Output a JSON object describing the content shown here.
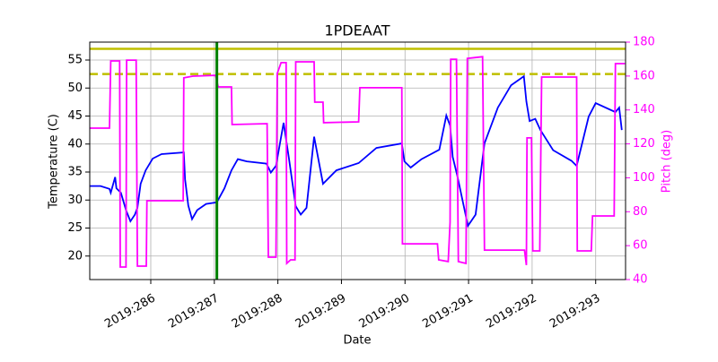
{
  "chart_data": {
    "type": "line",
    "title": "1PDEAAT",
    "x_label": "Date",
    "y_label": "Temperature (C)",
    "y2_label": "Pitch (deg)",
    "xlim": [
      285.04,
      293.47
    ],
    "xticks": [
      {
        "value": 286,
        "label": "2019:286"
      },
      {
        "value": 287,
        "label": "2019:287"
      },
      {
        "value": 288,
        "label": "2019:288"
      },
      {
        "value": 289,
        "label": "2019:289"
      },
      {
        "value": 290,
        "label": "2019:290"
      },
      {
        "value": 291,
        "label": "2019:291"
      },
      {
        "value": 292,
        "label": "2019:292"
      },
      {
        "value": 293,
        "label": "2019:293"
      }
    ],
    "ylim": [
      15.8,
      58.2
    ],
    "yticks": [
      20,
      25,
      30,
      35,
      40,
      45,
      50,
      55
    ],
    "y2lim": [
      40,
      180
    ],
    "y2ticks": [
      40,
      60,
      80,
      100,
      120,
      140,
      160,
      180
    ],
    "y2_color": "#ff00ff",
    "grid": true,
    "hlines": [
      {
        "value": 57,
        "color": "#bfbf00",
        "style": "solid"
      },
      {
        "value": 52.5,
        "color": "#bfbf00",
        "style": "dashed"
      }
    ],
    "vline": {
      "value": 287.04,
      "color": "#008000"
    },
    "series": [
      {
        "color": "#0000ff",
        "axis": "y",
        "x": [
          285.04,
          285.21,
          285.35,
          285.37,
          285.44,
          285.46,
          285.53,
          285.61,
          285.68,
          285.75,
          285.79,
          285.84,
          285.92,
          286.03,
          286.17,
          286.52,
          286.54,
          286.59,
          286.65,
          286.73,
          286.87,
          287.04,
          287.16,
          287.27,
          287.37,
          287.51,
          287.82,
          287.89,
          287.97,
          288.09,
          288.17,
          288.28,
          288.36,
          288.45,
          288.57,
          288.71,
          288.92,
          289.27,
          289.55,
          289.95,
          289.99,
          290.09,
          290.26,
          290.54,
          290.65,
          290.71,
          290.75,
          290.82,
          290.99,
          291.11,
          291.25,
          291.46,
          291.67,
          291.87,
          291.91,
          291.96,
          292.05,
          292.13,
          292.33,
          292.62,
          292.7,
          292.89,
          293.0,
          293.31,
          293.37,
          293.41
        ],
        "values": [
          32.5,
          32.5,
          32.0,
          31.3,
          34.1,
          32.1,
          31.3,
          28.2,
          26.2,
          27.4,
          28.6,
          32.9,
          35.3,
          37.4,
          38.2,
          38.5,
          33.7,
          29.0,
          26.6,
          28.2,
          29.3,
          29.6,
          32.1,
          35.3,
          37.3,
          36.9,
          36.5,
          34.9,
          36.1,
          43.8,
          37.7,
          28.9,
          27.4,
          28.6,
          41.3,
          32.9,
          35.3,
          36.6,
          39.3,
          40.1,
          36.9,
          35.8,
          37.3,
          39.0,
          45.1,
          43.3,
          37.7,
          34.5,
          25.4,
          27.4,
          40.1,
          46.5,
          50.5,
          52.1,
          47.6,
          44.1,
          44.5,
          42.5,
          38.9,
          37.0,
          36.1,
          44.9,
          47.3,
          45.7,
          46.5,
          42.5
        ]
      },
      {
        "color": "#ff00ff",
        "axis": "y2",
        "x": [
          285.04,
          285.35,
          285.37,
          285.51,
          285.52,
          285.61,
          285.62,
          285.77,
          285.79,
          285.93,
          285.94,
          286.51,
          286.52,
          286.66,
          287.02,
          287.06,
          287.27,
          287.28,
          287.83,
          287.85,
          287.97,
          287.99,
          288.05,
          288.13,
          288.14,
          288.2,
          288.27,
          288.28,
          288.57,
          288.58,
          288.71,
          288.72,
          289.27,
          289.29,
          289.95,
          289.96,
          290.51,
          290.53,
          290.68,
          290.71,
          290.72,
          290.81,
          290.84,
          290.96,
          290.98,
          291.22,
          291.25,
          291.88,
          291.91,
          291.92,
          291.99,
          292.01,
          292.12,
          292.15,
          292.7,
          292.71,
          292.93,
          292.95,
          293.29,
          293.31,
          293.46
        ],
        "values": [
          129.3,
          129.3,
          168.9,
          168.9,
          47.4,
          47.4,
          169.4,
          169.4,
          47.9,
          47.9,
          86.5,
          86.5,
          158.9,
          159.9,
          160.4,
          153.6,
          153.6,
          131.4,
          131.9,
          53.2,
          53.2,
          161.5,
          167.9,
          167.9,
          49.5,
          51.6,
          51.6,
          168.4,
          168.4,
          144.6,
          144.6,
          132.5,
          133.0,
          153.1,
          153.1,
          61.1,
          61.1,
          51.6,
          50.6,
          73.8,
          169.9,
          169.9,
          50.6,
          49.5,
          170.4,
          171.4,
          57.4,
          57.4,
          48.5,
          123.5,
          123.5,
          56.9,
          56.9,
          159.4,
          159.4,
          56.9,
          56.9,
          77.5,
          77.5,
          167.3,
          167.3
        ]
      }
    ]
  }
}
